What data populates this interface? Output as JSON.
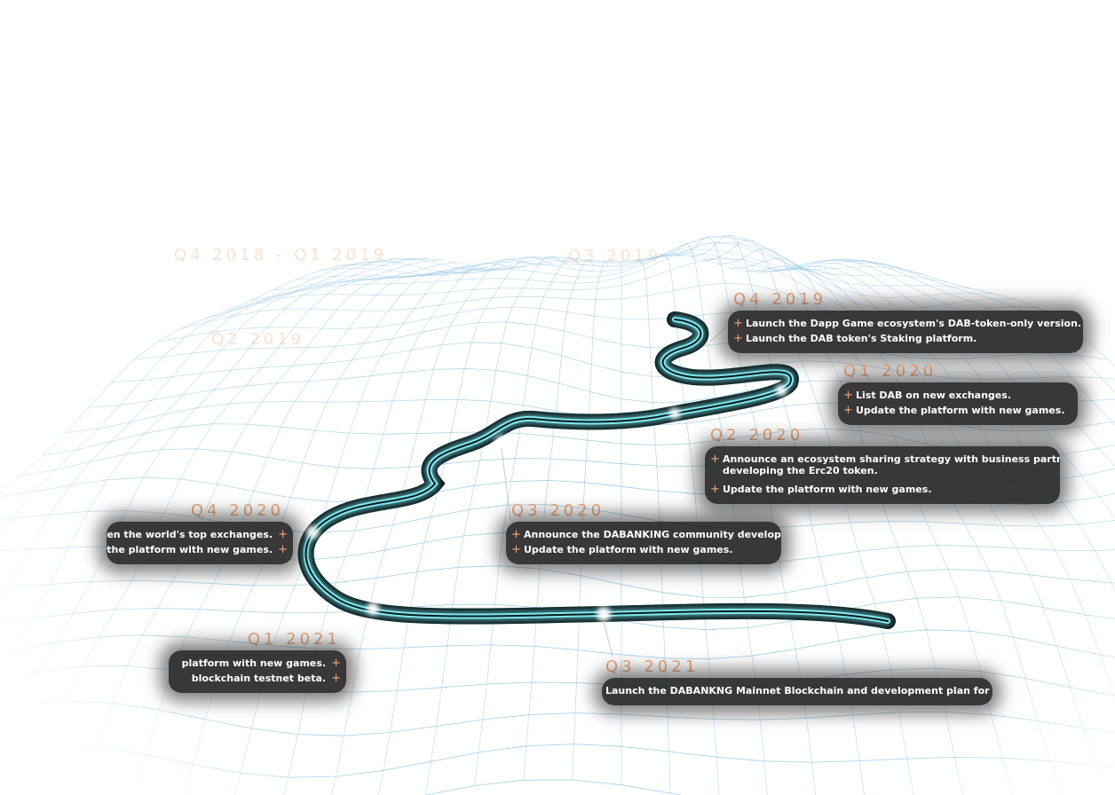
{
  "roadmap": {
    "milestones": [
      {
        "id": "q4-2018-q1-2019",
        "title": "Q4 2018 - Q1 2019",
        "items": []
      },
      {
        "id": "q3-2019",
        "title": "Q3 2019",
        "items": []
      },
      {
        "id": "q2-2019",
        "title": "Q2 2019",
        "items": []
      },
      {
        "id": "q4-2019",
        "title": "Q4 2019",
        "items": [
          "Launch the Dapp Game ecosystem's DAB-token-only version.",
          "Launch the DAB token's Staking platform."
        ]
      },
      {
        "id": "q1-2020",
        "title": "Q1 2020",
        "items": [
          "List DAB on new exchanges.",
          "Update the platform with new games."
        ]
      },
      {
        "id": "q2-2020",
        "title": "Q2 2020",
        "items": [
          "Announce an ecosystem sharing strategy with business partners.",
          "developing the Erc20 token.",
          "Update the platform with new games."
        ]
      },
      {
        "id": "q3-2020",
        "title": "Q3 2020",
        "items": [
          "Announce the DABANKING community development",
          "Update the platform with new games."
        ]
      },
      {
        "id": "q4-2020",
        "title": "Q4 2020",
        "items": [
          "en the world's top exchanges.",
          "the platform with new games."
        ]
      },
      {
        "id": "q1-2021",
        "title": "Q1 2021",
        "items": [
          "platform with new games.",
          "blockchain testnet beta."
        ]
      },
      {
        "id": "q3-2021",
        "title": "Q3 2021",
        "items": [
          "Launch the DABANKNG Mainnet Blockchain and development plan for the"
        ]
      }
    ]
  },
  "colors": {
    "accent": "#f0a878",
    "mesh": "#5aa8d8",
    "road_glow": "#7ee8f0",
    "card": "#1c1c1c"
  }
}
